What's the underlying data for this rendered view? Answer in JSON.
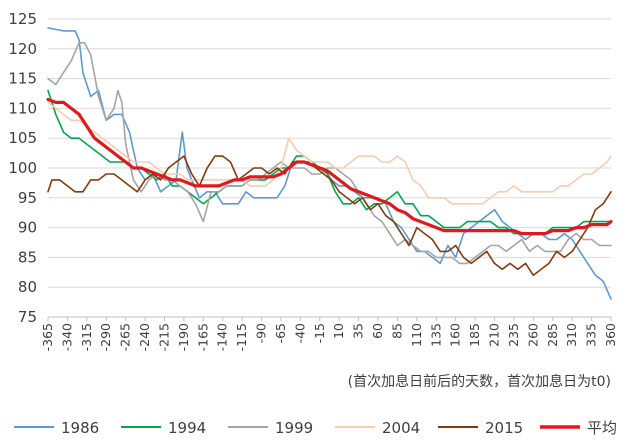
{
  "chart_data": {
    "type": "line",
    "title": "",
    "xlabel": "(首次加息日前后的天数，首次加息日为t0)",
    "ylabel": "",
    "xlim": [
      -365,
      360
    ],
    "ylim": [
      75,
      125
    ],
    "yticks": [
      75,
      80,
      85,
      90,
      95,
      100,
      105,
      110,
      115,
      120,
      125
    ],
    "ytick_labels": [
      "75",
      "80",
      "85",
      "90",
      "95",
      "100",
      "105",
      "110",
      "115",
      "120",
      "125"
    ],
    "xticks": [
      -365,
      -340,
      -315,
      -290,
      -265,
      -240,
      -215,
      -190,
      -165,
      -140,
      -115,
      -90,
      -65,
      -40,
      -15,
      10,
      35,
      60,
      85,
      110,
      135,
      160,
      185,
      210,
      235,
      260,
      285,
      310,
      335,
      360
    ],
    "xtick_labels": [
      "-365",
      "-340",
      "-315",
      "-290",
      "-265",
      "-240",
      "-215",
      "-190",
      "-165",
      "-140",
      "-115",
      "-90",
      "-65",
      "-40",
      "-15",
      "10",
      "35",
      "60",
      "85",
      "110",
      "135",
      "160",
      "185",
      "210",
      "235",
      "260",
      "285",
      "310",
      "335",
      "360"
    ],
    "grid": "horizontal",
    "legend_position": "bottom",
    "series": [
      {
        "name": "1986",
        "color": "#5b9bd5",
        "width": 1.6,
        "x": [
          -365,
          -345,
          -330,
          -325,
          -320,
          -310,
          -300,
          -290,
          -280,
          -270,
          -260,
          -250,
          -240,
          -230,
          -220,
          -210,
          -200,
          -192,
          -186,
          -180,
          -170,
          -160,
          -150,
          -140,
          -130,
          -120,
          -110,
          -100,
          -90,
          -80,
          -70,
          -60,
          -50,
          -40,
          -30,
          -20,
          -10,
          0,
          10,
          20,
          30,
          40,
          50,
          60,
          70,
          80,
          90,
          100,
          110,
          120,
          130,
          140,
          150,
          160,
          170,
          180,
          190,
          200,
          210,
          220,
          230,
          240,
          250,
          260,
          270,
          280,
          290,
          300,
          310,
          320,
          330,
          340,
          350,
          360
        ],
        "y": [
          123.5,
          123,
          123,
          121.5,
          116,
          112,
          113,
          108,
          109,
          109,
          106,
          100,
          98,
          99,
          96,
          97,
          98,
          106,
          100,
          98,
          95,
          96,
          96,
          94,
          94,
          94,
          96,
          95,
          95,
          95,
          95,
          97,
          101,
          101,
          101,
          100,
          100,
          98,
          97,
          97,
          96,
          95,
          95,
          95,
          94,
          91,
          90,
          88,
          86,
          86,
          85,
          84,
          87,
          85,
          89,
          90,
          91,
          92,
          93,
          91,
          90,
          89,
          88,
          89,
          89,
          88,
          88,
          89,
          88,
          86,
          84,
          82,
          81,
          78
        ]
      },
      {
        "name": "1994",
        "color": "#00a650",
        "width": 1.6,
        "x": [
          -365,
          -355,
          -345,
          -335,
          -325,
          -315,
          -305,
          -295,
          -285,
          -275,
          -265,
          -255,
          -245,
          -235,
          -225,
          -215,
          -205,
          -195,
          -185,
          -175,
          -165,
          -155,
          -145,
          -135,
          -125,
          -115,
          -105,
          -95,
          -85,
          -75,
          -65,
          -55,
          -45,
          -35,
          -25,
          -15,
          -5,
          5,
          15,
          25,
          35,
          45,
          55,
          65,
          75,
          85,
          95,
          105,
          115,
          125,
          135,
          145,
          155,
          165,
          175,
          185,
          195,
          205,
          215,
          225,
          235,
          245,
          255,
          265,
          275,
          285,
          295,
          305,
          315,
          325,
          335,
          345,
          355,
          360
        ],
        "y": [
          113,
          109,
          106,
          105,
          105,
          104,
          103,
          102,
          101,
          101,
          101,
          100,
          100,
          99,
          98,
          99,
          97,
          97,
          96,
          95,
          94,
          95,
          96,
          97,
          97,
          97,
          98,
          98,
          98,
          99,
          100,
          100,
          102,
          102,
          101,
          100,
          99,
          96,
          94,
          94,
          95,
          93,
          94,
          94,
          95,
          96,
          94,
          94,
          92,
          92,
          91,
          90,
          90,
          90,
          91,
          91,
          91,
          91,
          90,
          90,
          89,
          89,
          89,
          89,
          89,
          90,
          90,
          90,
          90,
          91,
          91,
          91,
          91,
          91
        ]
      },
      {
        "name": "1999",
        "color": "#a5a5a5",
        "width": 1.6,
        "x": [
          -365,
          -355,
          -345,
          -335,
          -325,
          -318,
          -310,
          -300,
          -290,
          -280,
          -275,
          -270,
          -265,
          -255,
          -245,
          -235,
          -225,
          -215,
          -205,
          -195,
          -185,
          -175,
          -165,
          -155,
          -145,
          -135,
          -125,
          -115,
          -105,
          -95,
          -85,
          -75,
          -65,
          -55,
          -45,
          -35,
          -25,
          -15,
          -5,
          5,
          15,
          25,
          35,
          45,
          55,
          65,
          75,
          85,
          95,
          105,
          115,
          125,
          135,
          145,
          155,
          165,
          175,
          185,
          195,
          205,
          215,
          225,
          235,
          245,
          255,
          265,
          275,
          285,
          295,
          305,
          315,
          325,
          335,
          345,
          355,
          360
        ],
        "y": [
          115,
          114,
          116,
          118,
          121,
          121,
          119,
          112,
          108,
          110,
          113,
          111,
          104,
          98,
          96,
          98,
          99,
          98,
          98,
          97,
          96,
          94,
          91,
          96,
          96,
          97,
          97,
          97,
          98,
          98,
          99,
          100,
          101,
          100,
          100,
          100,
          99,
          99,
          100,
          100,
          99,
          98,
          96,
          94,
          92,
          91,
          89,
          87,
          88,
          87,
          86,
          86,
          85,
          85,
          85,
          84,
          84,
          85,
          86,
          87,
          87,
          86,
          87,
          88,
          86,
          87,
          86,
          86,
          86,
          88,
          89,
          88,
          88,
          87,
          87,
          87
        ]
      },
      {
        "name": "2004",
        "color": "#f8cbad",
        "width": 1.6,
        "x": [
          -365,
          -355,
          -345,
          -335,
          -325,
          -315,
          -305,
          -295,
          -285,
          -275,
          -265,
          -255,
          -245,
          -235,
          -225,
          -215,
          -205,
          -195,
          -185,
          -175,
          -165,
          -155,
          -145,
          -135,
          -125,
          -115,
          -105,
          -95,
          -85,
          -75,
          -65,
          -55,
          -45,
          -35,
          -25,
          -15,
          -5,
          5,
          15,
          25,
          35,
          45,
          55,
          65,
          75,
          85,
          95,
          105,
          115,
          125,
          135,
          145,
          155,
          165,
          175,
          185,
          195,
          205,
          215,
          225,
          235,
          245,
          255,
          265,
          275,
          285,
          295,
          305,
          315,
          325,
          335,
          345,
          355,
          360
        ],
        "y": [
          111,
          110,
          109,
          108,
          108,
          107,
          106,
          105,
          104,
          103,
          102,
          101,
          101,
          101,
          100,
          99,
          99,
          99,
          98,
          98,
          98,
          98,
          98,
          98,
          98,
          98,
          97,
          97,
          97,
          98,
          100,
          105,
          103,
          102,
          101,
          101,
          101,
          100,
          100,
          101,
          102,
          102,
          102,
          101,
          101,
          102,
          101,
          98,
          97,
          95,
          95,
          95,
          94,
          94,
          94,
          94,
          94,
          95,
          96,
          96,
          97,
          96,
          96,
          96,
          96,
          96,
          97,
          97,
          98,
          99,
          99,
          100,
          101,
          102
        ]
      },
      {
        "name": "2015",
        "color": "#843c0c",
        "width": 1.6,
        "x": [
          -365,
          -360,
          -350,
          -340,
          -330,
          -320,
          -310,
          -300,
          -290,
          -280,
          -270,
          -260,
          -250,
          -240,
          -230,
          -220,
          -210,
          -200,
          -190,
          -180,
          -170,
          -160,
          -150,
          -140,
          -130,
          -120,
          -110,
          -100,
          -90,
          -80,
          -70,
          -60,
          -50,
          -40,
          -30,
          -20,
          -10,
          0,
          10,
          20,
          30,
          40,
          50,
          60,
          70,
          80,
          90,
          100,
          110,
          120,
          130,
          140,
          150,
          160,
          170,
          180,
          190,
          200,
          210,
          220,
          230,
          240,
          250,
          260,
          270,
          280,
          290,
          300,
          310,
          320,
          330,
          340,
          350,
          360
        ],
        "y": [
          96,
          98,
          98,
          97,
          96,
          96,
          98,
          98,
          99,
          99,
          98,
          97,
          96,
          98,
          99,
          98,
          100,
          101,
          102,
          99,
          97,
          100,
          102,
          102,
          101,
          98,
          99,
          100,
          100,
          99,
          100,
          99,
          101,
          101,
          101,
          100,
          99,
          98,
          96,
          95,
          94,
          95,
          93,
          94,
          92,
          91,
          89,
          87,
          90,
          89,
          88,
          86,
          86,
          87,
          85,
          84,
          85,
          86,
          84,
          83,
          84,
          83,
          84,
          82,
          83,
          84,
          86,
          85,
          86,
          88,
          90,
          93,
          94,
          96
        ]
      },
      {
        "name": "平均",
        "color": "#e0191f",
        "width": 3.2,
        "x": [
          -365,
          -355,
          -345,
          -335,
          -325,
          -315,
          -305,
          -295,
          -285,
          -275,
          -265,
          -255,
          -245,
          -235,
          -225,
          -215,
          -205,
          -195,
          -185,
          -175,
          -165,
          -155,
          -145,
          -135,
          -125,
          -115,
          -105,
          -95,
          -85,
          -75,
          -65,
          -55,
          -45,
          -35,
          -25,
          -15,
          -5,
          5,
          15,
          25,
          35,
          45,
          55,
          65,
          75,
          85,
          95,
          105,
          115,
          125,
          135,
          145,
          155,
          165,
          175,
          185,
          195,
          205,
          215,
          225,
          235,
          245,
          255,
          265,
          275,
          285,
          295,
          305,
          315,
          325,
          335,
          345,
          355,
          360
        ],
        "y": [
          111.5,
          111,
          111,
          110,
          109,
          107,
          105,
          104,
          103,
          102,
          101,
          100,
          100,
          99.5,
          99,
          98.5,
          98,
          98,
          97.5,
          97,
          97,
          97,
          97,
          97.5,
          98,
          98,
          98.5,
          98.5,
          98.5,
          98.5,
          99,
          100,
          101,
          101,
          100.5,
          100,
          99.5,
          98.5,
          97.5,
          96.5,
          96,
          95.5,
          95,
          94.5,
          94,
          93,
          92.5,
          91.5,
          91,
          90.5,
          90,
          89.5,
          89.5,
          89.5,
          89.5,
          89.5,
          89.5,
          89.5,
          89.5,
          89.5,
          89.5,
          89,
          89,
          89,
          89,
          89.5,
          89.5,
          89.5,
          90,
          90,
          90.5,
          90.5,
          90.5,
          91
        ]
      }
    ]
  }
}
